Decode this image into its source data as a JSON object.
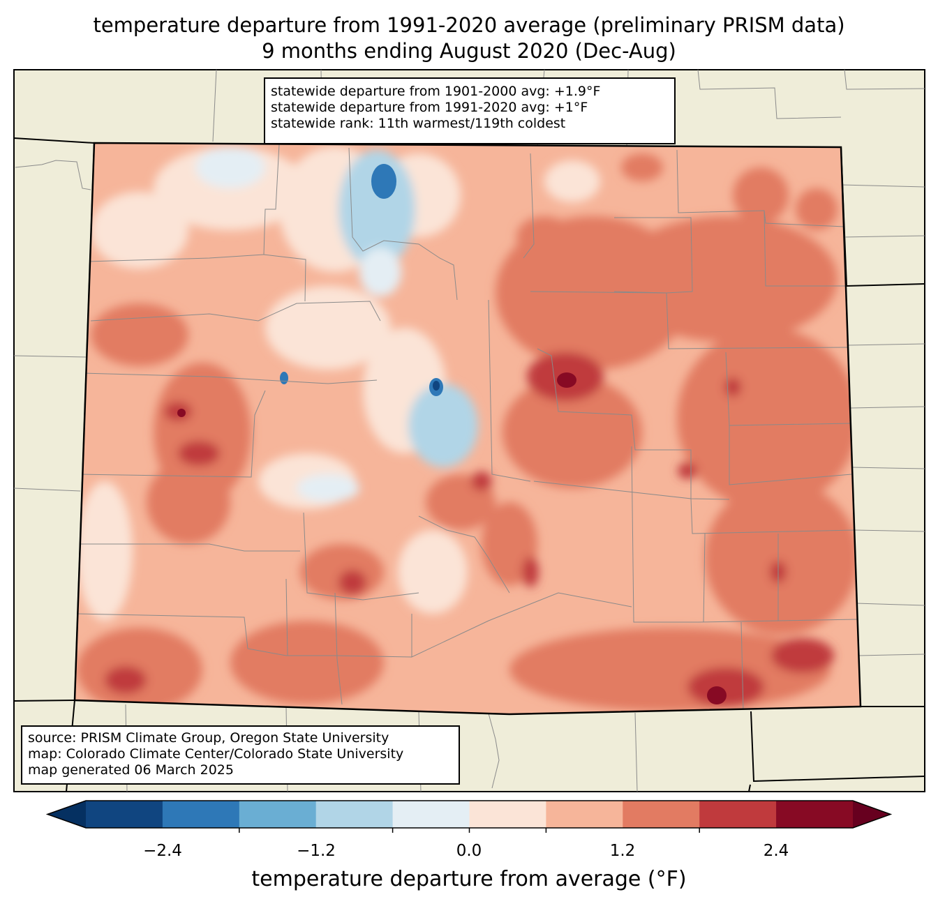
{
  "title": {
    "line1": "temperature departure from 1991-2020 average (preliminary PRISM data)",
    "line2": "9 months ending August 2020 (Dec-Aug)"
  },
  "stats": {
    "line1": "statewide departure from 1901-2000 avg: +1.9°F",
    "line2": "statewide departure from 1991-2020 avg: +1°F",
    "line3": "statewide rank: 11th warmest/119th coldest"
  },
  "source": {
    "line1": "source: PRISM Climate Group, Oregon State University",
    "line2": "map: Colorado Climate Center/Colorado State University",
    "line3": "map generated 06 March 2025"
  },
  "colorbar": {
    "label": "temperature departure from average (°F)",
    "ticks": [
      "−2.4",
      "−1.2",
      "0.0",
      "1.2",
      "2.4"
    ],
    "colors": [
      "#104580",
      "#2e78b7",
      "#6aaed3",
      "#b1d5e7",
      "#e4eef4",
      "#fbe4d7",
      "#f6b59a",
      "#e27b62",
      "#c03a3d",
      "#870a24"
    ],
    "underflow_color": "#053061",
    "overflow_color": "#67001f"
  },
  "map_colors": {
    "land_background": "#efedd9",
    "state_fill": "#f6b59a"
  }
}
